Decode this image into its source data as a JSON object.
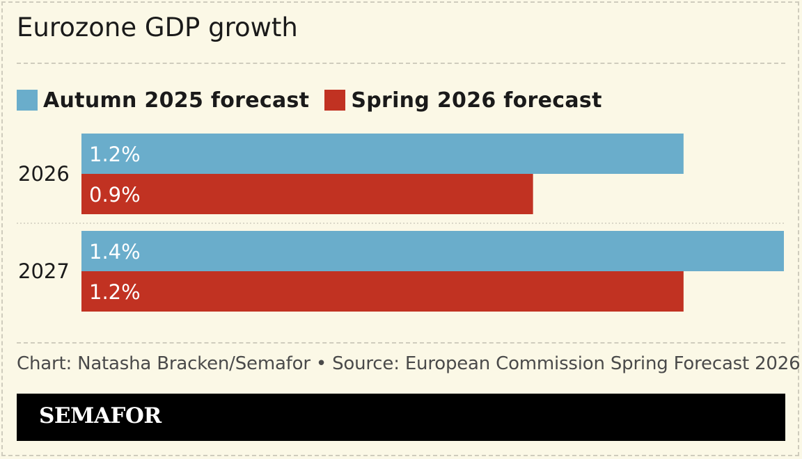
{
  "chart_data": {
    "type": "bar",
    "orientation": "horizontal",
    "title": "Eurozone GDP growth",
    "categories": [
      "2026",
      "2027"
    ],
    "series": [
      {
        "name": "Autumn 2025 forecast",
        "values": [
          1.2,
          1.4
        ],
        "labels": [
          "1.2%",
          "1.4%"
        ],
        "color": "#6aadcb"
      },
      {
        "name": "Spring 2026 forecast",
        "values": [
          0.9,
          1.2
        ],
        "labels": [
          "0.9%",
          "1.2%"
        ],
        "color": "#c13222"
      }
    ],
    "xlim": [
      0,
      1.4
    ],
    "legend": "top-left",
    "grid": false
  },
  "source": "Chart: Natasha Bracken/Semafor • Source: European Commission Spring Forecast 2026",
  "brand": "SEMAFOR"
}
